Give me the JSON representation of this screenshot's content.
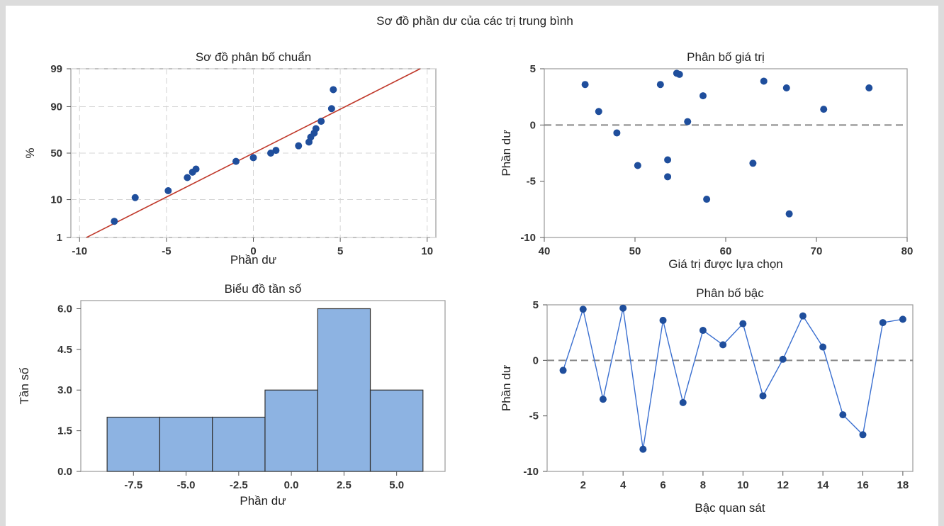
{
  "figure_title": "Sơ đồ phần dư của các trị trung bình",
  "colors": {
    "point": "#1f4e9c",
    "line": "#c0392b",
    "bar": "#8db3e2",
    "bar_edge": "#333333",
    "ref": "#888888",
    "grid": "#d4d4d4"
  },
  "chart_data": [
    {
      "type": "scatter",
      "title": "Sơ đồ phân bố chuẩn",
      "xlabel": "Phần dư",
      "ylabel": "%",
      "x_ticks": [
        "-10",
        "-5",
        "0",
        "5",
        "10"
      ],
      "y_ticks": [
        "1",
        "10",
        "50",
        "90",
        "99"
      ],
      "xlim": [
        -10.5,
        10.5
      ],
      "y_scale": "normal-probability",
      "ylim_percent": [
        1,
        99
      ],
      "grid": true,
      "points": [
        {
          "x": -8.0,
          "y": 3
        },
        {
          "x": -6.8,
          "y": 11
        },
        {
          "x": -4.9,
          "y": 15
        },
        {
          "x": -3.8,
          "y": 25
        },
        {
          "x": -3.5,
          "y": 30
        },
        {
          "x": -3.3,
          "y": 33
        },
        {
          "x": -1.0,
          "y": 41
        },
        {
          "x": 0.0,
          "y": 45
        },
        {
          "x": 1.0,
          "y": 50
        },
        {
          "x": 1.3,
          "y": 53
        },
        {
          "x": 2.6,
          "y": 58
        },
        {
          "x": 3.2,
          "y": 62
        },
        {
          "x": 3.3,
          "y": 67
        },
        {
          "x": 3.5,
          "y": 71
        },
        {
          "x": 3.6,
          "y": 75
        },
        {
          "x": 3.9,
          "y": 81
        },
        {
          "x": 4.5,
          "y": 89
        },
        {
          "x": 4.6,
          "y": 96
        }
      ],
      "fit_line": {
        "x0": -9.6,
        "p0": 1,
        "x1": 9.6,
        "p1": 99
      }
    },
    {
      "type": "scatter",
      "title": "Phân bố giá trị",
      "xlabel": "Giá trị được lựa chọn",
      "ylabel": "Phần dư",
      "x_ticks": [
        "40",
        "50",
        "60",
        "70",
        "80"
      ],
      "y_ticks": [
        "-10",
        "-5",
        "0",
        "5"
      ],
      "xlim": [
        40,
        80
      ],
      "ylim": [
        -10,
        5
      ],
      "reference_line": 0,
      "points": [
        {
          "x": 44.5,
          "y": 3.6
        },
        {
          "x": 46.0,
          "y": 1.2
        },
        {
          "x": 48.0,
          "y": -0.7
        },
        {
          "x": 50.3,
          "y": -3.6
        },
        {
          "x": 52.8,
          "y": 3.6
        },
        {
          "x": 53.6,
          "y": -3.1
        },
        {
          "x": 53.6,
          "y": -4.6
        },
        {
          "x": 54.6,
          "y": 4.6
        },
        {
          "x": 54.9,
          "y": 4.5
        },
        {
          "x": 55.8,
          "y": 0.3
        },
        {
          "x": 57.5,
          "y": 2.6
        },
        {
          "x": 57.9,
          "y": -6.6
        },
        {
          "x": 63.0,
          "y": -3.4
        },
        {
          "x": 64.2,
          "y": 3.9
        },
        {
          "x": 66.7,
          "y": 3.3
        },
        {
          "x": 67.0,
          "y": -7.9
        },
        {
          "x": 70.8,
          "y": 1.4
        },
        {
          "x": 75.8,
          "y": 3.3
        }
      ]
    },
    {
      "type": "bar",
      "title": "Biểu đồ tần số",
      "xlabel": "Phần dư",
      "ylabel": "Tần số",
      "x_ticks": [
        "-7.5",
        "-5.0",
        "-2.5",
        "0.0",
        "2.5",
        "5.0"
      ],
      "y_ticks": [
        "0.0",
        "1.5",
        "3.0",
        "4.5",
        "6.0"
      ],
      "categories": [
        -7.5,
        -5.0,
        -2.5,
        0.0,
        2.5,
        5.0
      ],
      "bin_width": 2.5,
      "values": [
        2,
        2,
        2,
        3,
        6,
        3
      ],
      "xlim": [
        -10.0,
        7.3
      ],
      "ylim": [
        0,
        6.3
      ]
    },
    {
      "type": "line",
      "title": "Phân bố bậc",
      "xlabel": "Bậc quan sát",
      "ylabel": "Phần dư",
      "x_ticks": [
        "2",
        "4",
        "6",
        "8",
        "10",
        "12",
        "14",
        "16",
        "18"
      ],
      "y_ticks": [
        "-10",
        "-5",
        "0",
        "5"
      ],
      "xlim": [
        0.2,
        18.5
      ],
      "ylim": [
        -10,
        5
      ],
      "reference_line": 0,
      "x": [
        1,
        2,
        3,
        4,
        5,
        6,
        7,
        8,
        9,
        10,
        11,
        12,
        13,
        14,
        15,
        16,
        17,
        18
      ],
      "values": [
        -0.9,
        4.6,
        -3.5,
        4.7,
        -8.0,
        3.6,
        -3.8,
        2.7,
        1.4,
        3.3,
        -3.2,
        0.1,
        4.0,
        1.2,
        -4.9,
        -6.7,
        3.4,
        3.7
      ]
    }
  ]
}
